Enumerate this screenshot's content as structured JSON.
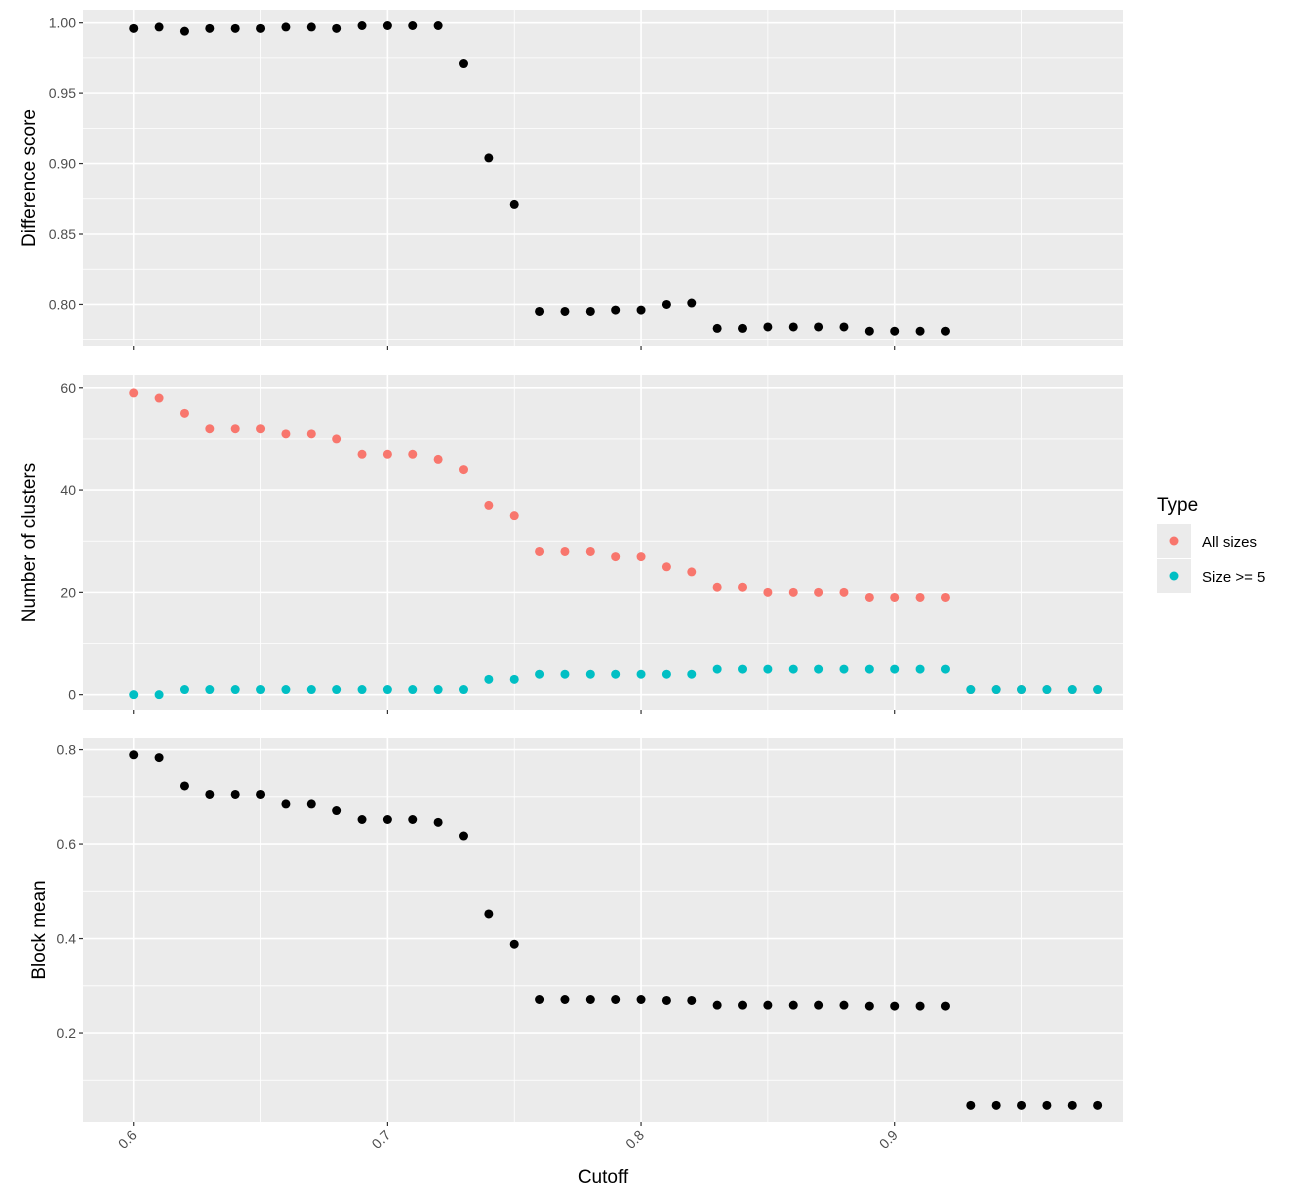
{
  "chart_data": {
    "type": "scatter",
    "xlabel": "Cutoff",
    "x_ticks": [
      "0.6",
      "0.7",
      "0.8",
      "0.9"
    ],
    "x_tick_values": [
      0.6,
      0.7,
      0.8,
      0.9
    ],
    "xlim": [
      0.58,
      0.99
    ],
    "grid": true,
    "legend": {
      "title": "Type",
      "placement": "right",
      "entries": [
        {
          "label": "All sizes",
          "color": "#F8766D"
        },
        {
          "label": "Size >= 5",
          "color": "#00BFC4"
        }
      ]
    },
    "panels": [
      {
        "ylabel": "Difference score",
        "ylim": [
          0.7705,
          1.009
        ],
        "y_ticks": [
          "0.80",
          "0.85",
          "0.90",
          "0.95",
          "1.00"
        ],
        "y_tick_values": [
          0.8,
          0.85,
          0.9,
          0.95,
          1.0
        ],
        "series": [
          {
            "color": "#000000",
            "x": [
              0.6,
              0.61,
              0.62,
              0.63,
              0.64,
              0.65,
              0.66,
              0.67,
              0.68,
              0.69,
              0.7,
              0.71,
              0.72,
              0.73,
              0.74,
              0.75,
              0.76,
              0.77,
              0.78,
              0.79,
              0.8,
              0.81,
              0.82,
              0.83,
              0.84,
              0.85,
              0.86,
              0.87,
              0.88,
              0.89,
              0.9,
              0.91,
              0.92
            ],
            "y": [
              0.996,
              0.997,
              0.994,
              0.996,
              0.996,
              0.996,
              0.997,
              0.997,
              0.996,
              0.998,
              0.998,
              0.998,
              0.998,
              0.971,
              0.904,
              0.871,
              0.795,
              0.795,
              0.795,
              0.796,
              0.796,
              0.8,
              0.801,
              0.783,
              0.783,
              0.784,
              0.784,
              0.784,
              0.784,
              0.781,
              0.781,
              0.781,
              0.781
            ]
          }
        ]
      },
      {
        "ylabel": "Number of clusters",
        "ylim": [
          -3,
          62.5
        ],
        "y_ticks": [
          "0",
          "20",
          "40",
          "60"
        ],
        "y_tick_values": [
          0,
          20,
          40,
          60
        ],
        "series": [
          {
            "name": "All sizes",
            "color": "#F8766D",
            "x": [
              0.6,
              0.61,
              0.62,
              0.63,
              0.64,
              0.65,
              0.66,
              0.67,
              0.68,
              0.69,
              0.7,
              0.71,
              0.72,
              0.73,
              0.74,
              0.75,
              0.76,
              0.77,
              0.78,
              0.79,
              0.8,
              0.81,
              0.82,
              0.83,
              0.84,
              0.85,
              0.86,
              0.87,
              0.88,
              0.89,
              0.9,
              0.91,
              0.92,
              0.93,
              0.94,
              0.95,
              0.96,
              0.97,
              0.98
            ],
            "y": [
              59,
              58,
              55,
              52,
              52,
              52,
              51,
              51,
              50,
              47,
              47,
              47,
              46,
              44,
              37,
              35,
              28,
              28,
              28,
              27,
              27,
              25,
              24,
              21,
              21,
              20,
              20,
              20,
              20,
              19,
              19,
              19,
              19,
              1,
              1,
              1,
              1,
              1,
              1
            ]
          },
          {
            "name": "Size >= 5",
            "color": "#00BFC4",
            "x": [
              0.6,
              0.61,
              0.62,
              0.63,
              0.64,
              0.65,
              0.66,
              0.67,
              0.68,
              0.69,
              0.7,
              0.71,
              0.72,
              0.73,
              0.74,
              0.75,
              0.76,
              0.77,
              0.78,
              0.79,
              0.8,
              0.81,
              0.82,
              0.83,
              0.84,
              0.85,
              0.86,
              0.87,
              0.88,
              0.89,
              0.9,
              0.91,
              0.92,
              0.93,
              0.94,
              0.95,
              0.96,
              0.97,
              0.98
            ],
            "y": [
              0,
              0,
              1,
              1,
              1,
              1,
              1,
              1,
              1,
              1,
              1,
              1,
              1,
              1,
              3,
              3,
              4,
              4,
              4,
              4,
              4,
              4,
              4,
              5,
              5,
              5,
              5,
              5,
              5,
              5,
              5,
              5,
              5,
              1,
              1,
              1,
              1,
              1,
              1
            ]
          }
        ]
      },
      {
        "ylabel": "Block mean",
        "ylim": [
          0.0117,
          0.8245
        ],
        "y_ticks": [
          "0.2",
          "0.4",
          "0.6",
          "0.8"
        ],
        "y_tick_values": [
          0.2,
          0.4,
          0.6,
          0.8
        ],
        "series": [
          {
            "color": "#000000",
            "x": [
              0.6,
              0.61,
              0.62,
              0.63,
              0.64,
              0.65,
              0.66,
              0.67,
              0.68,
              0.69,
              0.7,
              0.71,
              0.72,
              0.73,
              0.74,
              0.75,
              0.76,
              0.77,
              0.78,
              0.79,
              0.8,
              0.81,
              0.82,
              0.83,
              0.84,
              0.85,
              0.86,
              0.87,
              0.88,
              0.89,
              0.9,
              0.91,
              0.92,
              0.93,
              0.94,
              0.95,
              0.96,
              0.97,
              0.98
            ],
            "y": [
              0.789,
              0.783,
              0.723,
              0.705,
              0.705,
              0.705,
              0.685,
              0.685,
              0.671,
              0.652,
              0.652,
              0.652,
              0.646,
              0.617,
              0.452,
              0.388,
              0.271,
              0.271,
              0.271,
              0.271,
              0.271,
              0.269,
              0.269,
              0.259,
              0.259,
              0.259,
              0.259,
              0.259,
              0.259,
              0.257,
              0.257,
              0.257,
              0.257,
              0.047,
              0.047,
              0.047,
              0.047,
              0.047,
              0.047
            ]
          }
        ]
      }
    ]
  }
}
